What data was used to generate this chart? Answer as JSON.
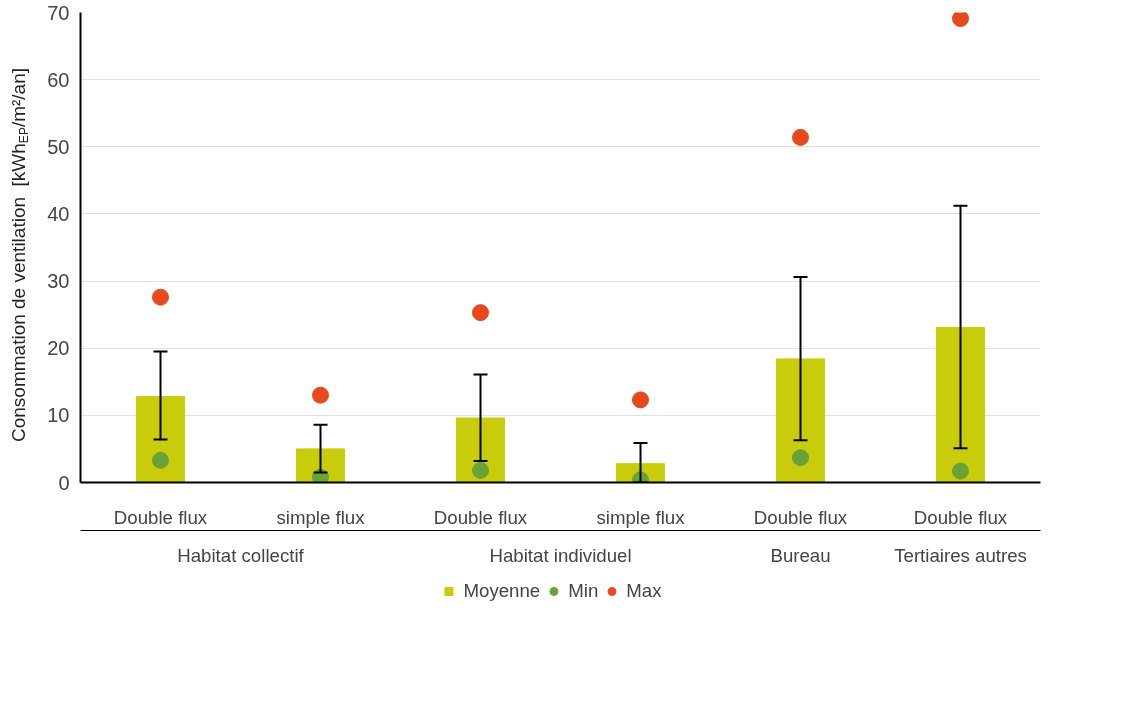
{
  "chart_data": {
    "type": "bar",
    "ylabel": "Consommation de ventilation  [kWh$_{EP}$/m²/an]",
    "categories": [
      "Double flux",
      "simple flux",
      "Double flux",
      "simple flux",
      "Double flux",
      "Double flux"
    ],
    "annotations": [
      {
        "text": "Habitat collectif"
      },
      {
        "text": "Habitat individuel"
      },
      {
        "text": "Bureau"
      },
      {
        "text": "Tertiaires autres"
      }
    ],
    "series": [
      {
        "name": "Moyenne",
        "color": "#c8cc0a",
        "values": [
          12.8,
          5.0,
          9.6,
          2.8,
          18.4,
          23.1
        ],
        "errors": [
          [
            6.4,
            19.5
          ],
          [
            1.5,
            8.6
          ],
          [
            3.2,
            16.1
          ],
          [
            0,
            5.9
          ],
          [
            6.3,
            30.6
          ],
          [
            5.1,
            41.2
          ]
        ]
      },
      {
        "name": "Min",
        "type": "scatter",
        "color": "#6aa23a",
        "values": [
          3.3,
          0.8,
          1.8,
          0.4,
          3.7,
          1.7
        ]
      },
      {
        "name": "Max",
        "type": "scatter",
        "color": "#e8481c",
        "values": [
          27.6,
          13.0,
          25.3,
          12.3,
          51.4,
          69.1
        ]
      }
    ],
    "ylim": [
      0,
      70
    ],
    "yticks": [
      0,
      10,
      20,
      30,
      40,
      50,
      60,
      70
    ],
    "grid": "y",
    "legend": "bottom",
    "marker": "circle"
  }
}
